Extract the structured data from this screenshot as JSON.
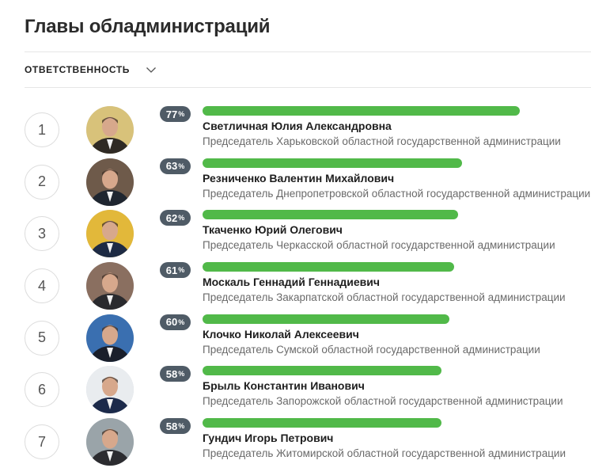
{
  "header": {
    "title": "Главы обладминистраций"
  },
  "filter": {
    "label": "ОТВЕТСТВЕННОСТЬ"
  },
  "percent_sign": "%",
  "colors": {
    "bar": "#51b949",
    "badge": "#4f5b66"
  },
  "people": [
    {
      "rank": "1",
      "percent": 77,
      "percent_label": "77",
      "name": "Светличная Юлия Александровна",
      "position": "Председатель Харьковской областной государственной администрации",
      "avatar_bg": "#d8c27a",
      "avatar_fg": "#2f2a24"
    },
    {
      "rank": "2",
      "percent": 63,
      "percent_label": "63",
      "name": "Резниченко Валентин Михайлович",
      "position": "Председатель Днепропетровской областной государственной администрации",
      "avatar_bg": "#6e5a4a",
      "avatar_fg": "#1f2630"
    },
    {
      "rank": "3",
      "percent": 62,
      "percent_label": "62",
      "name": "Ткаченко Юрий Олегович",
      "position": "Председатель Черкасской областной государственной администрации",
      "avatar_bg": "#e2b83a",
      "avatar_fg": "#1e2b44"
    },
    {
      "rank": "4",
      "percent": 61,
      "percent_label": "61",
      "name": "Москаль Геннадий Геннадиевич",
      "position": "Председатель Закарпатской областной государственной администрации",
      "avatar_bg": "#8a6f60",
      "avatar_fg": "#2a2a2e"
    },
    {
      "rank": "5",
      "percent": 60,
      "percent_label": "60",
      "name": "Клочко Николай Алексеевич",
      "position": "Председатель Сумской областной государственной администрации",
      "avatar_bg": "#3a6fb0",
      "avatar_fg": "#1a1f2b"
    },
    {
      "rank": "6",
      "percent": 58,
      "percent_label": "58",
      "name": "Брыль Константин Иванович",
      "position": "Председатель Запорожской областной государственной администрации",
      "avatar_bg": "#e9ecef",
      "avatar_fg": "#1c2a4a"
    },
    {
      "rank": "7",
      "percent": 58,
      "percent_label": "58",
      "name": "Гундич Игорь Петрович",
      "position": "Председатель Житомирской областной государственной администрации",
      "avatar_bg": "#9aa4a9",
      "avatar_fg": "#2c2c30"
    }
  ]
}
